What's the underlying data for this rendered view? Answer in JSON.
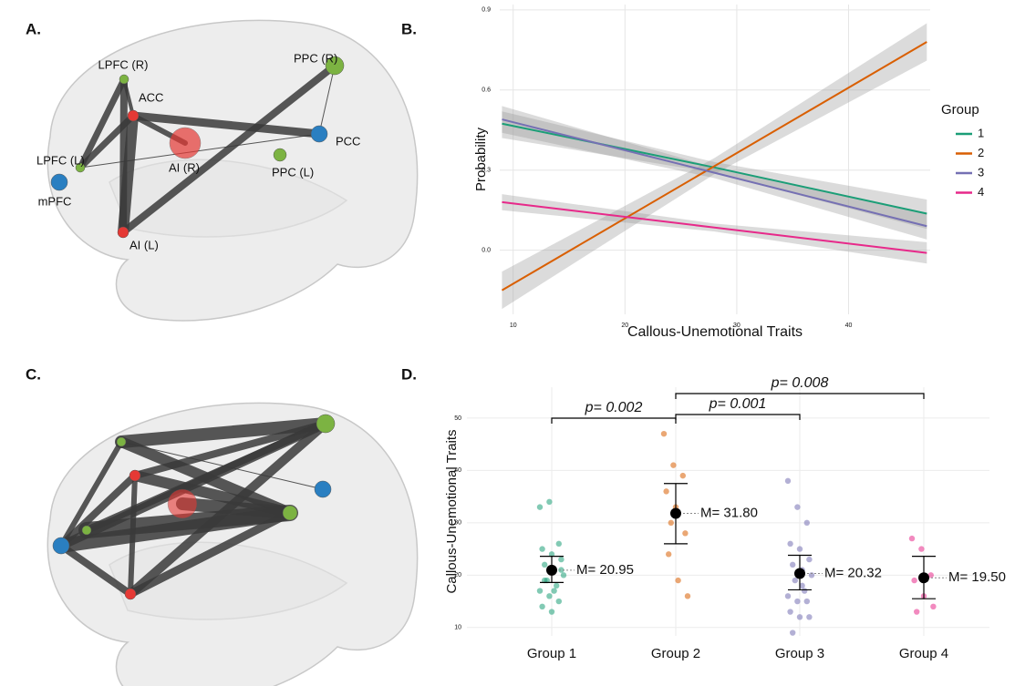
{
  "panel_labels": [
    "A.",
    "B.",
    "C.",
    "D."
  ],
  "network": {
    "nodes": [
      "LPFC (R)",
      "ACC",
      "AI (R)",
      "LPFC (L)",
      "mPFC",
      "AI (L)",
      "PPC (R)",
      "PCC",
      "PPC (L)"
    ]
  },
  "chart_data": [
    {
      "type": "line",
      "xlabel": "Callous-Unemotional Traits",
      "ylabel": "Probability",
      "legend_title": "Group",
      "legend": "right",
      "x": [
        9,
        28,
        47
      ],
      "xlim": [
        8.8,
        47.3
      ],
      "xticks": [
        10,
        20,
        30,
        40
      ],
      "ylim": [
        -0.24,
        0.92
      ],
      "yticks": [
        {
          "value": 0,
          "label": "0.0"
        },
        0.3,
        0.6,
        0.9
      ],
      "grid": true,
      "series": [
        {
          "name": "1",
          "color": "#1b9e77",
          "values": [
            0.474,
            0.31,
            0.137
          ],
          "lower": [
            0.42,
            0.29,
            0.08
          ],
          "upper": [
            0.52,
            0.33,
            0.19
          ]
        },
        {
          "name": "2",
          "color": "#d95f02",
          "values": [
            -0.15,
            0.315,
            0.78
          ],
          "lower": [
            -0.22,
            0.285,
            0.71
          ],
          "upper": [
            -0.08,
            0.345,
            0.85
          ]
        },
        {
          "name": "3",
          "color": "#7570b3",
          "values": [
            0.49,
            0.29,
            0.09
          ],
          "lower": [
            0.44,
            0.27,
            0.04
          ],
          "upper": [
            0.54,
            0.31,
            0.14
          ]
        },
        {
          "name": "4",
          "color": "#e7298a",
          "values": [
            0.18,
            0.085,
            -0.01
          ],
          "lower": [
            0.15,
            0.07,
            -0.05
          ],
          "upper": [
            0.21,
            0.1,
            0.03
          ]
        }
      ]
    },
    {
      "type": "dot",
      "ylabel": "Callous-Unemotional Traits",
      "categories": [
        "Group 1",
        "Group 2",
        "Group 3",
        "Group 4"
      ],
      "colors": [
        "#1b9e77",
        "#d95f02",
        "#7570b3",
        "#e7298a"
      ],
      "ylim": [
        8.4,
        55.9
      ],
      "yticks": [
        10,
        20,
        30,
        40,
        50
      ],
      "grid": true,
      "values": [
        20.95,
        31.8,
        20.32,
        19.5
      ],
      "value_labels": [
        "M= 20.95",
        "M= 31.80",
        "M= 20.32",
        "M= 19.50"
      ],
      "ci_low": [
        18.6,
        26,
        17.2,
        15.5
      ],
      "ci_high": [
        23.6,
        37.5,
        23.8,
        23.6
      ],
      "points": [
        [
          33,
          34,
          26,
          25,
          24,
          23,
          22,
          21,
          20,
          19,
          18,
          17,
          16,
          15,
          14,
          13,
          21,
          19,
          17
        ],
        [
          47,
          41,
          39,
          36,
          33,
          28,
          24,
          19,
          16,
          30
        ],
        [
          38,
          33,
          30,
          26,
          25,
          23,
          22,
          21,
          20,
          19,
          17,
          16,
          15,
          15,
          13,
          12,
          12,
          9,
          18
        ],
        [
          27,
          25,
          20,
          19,
          16,
          14,
          13
        ]
      ],
      "comparisons": [
        {
          "groups": [
            "Group 1",
            "Group 2"
          ],
          "label": "p= 0.002"
        },
        {
          "groups": [
            "Group 2",
            "Group 3"
          ],
          "label": "p= 0.001"
        },
        {
          "groups": [
            "Group 2",
            "Group 4"
          ],
          "label": "p= 0.008"
        }
      ]
    }
  ]
}
